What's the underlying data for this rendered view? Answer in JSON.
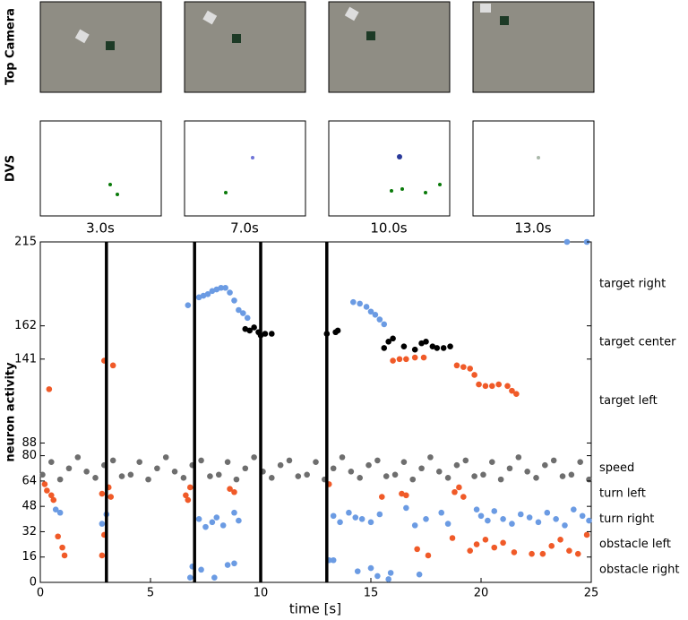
{
  "panels": {
    "row_labels": [
      "Top Camera",
      "DVS"
    ],
    "times": [
      "3.0s",
      "7.0s",
      "10.0s",
      "13.0s"
    ]
  },
  "chart_data": {
    "type": "scatter",
    "xlabel": "time [s]",
    "ylabel": "neuron activity",
    "xlim": [
      0,
      25
    ],
    "xticks": [
      0,
      5,
      10,
      15,
      20,
      25
    ],
    "ylim": [
      0,
      215
    ],
    "yticks": [
      0,
      16,
      32,
      48,
      64,
      80,
      88,
      141,
      162,
      215
    ],
    "markers": [
      3,
      7,
      10,
      13
    ],
    "regions": [
      {
        "label": "target right",
        "range": [
          162,
          215
        ]
      },
      {
        "label": "target center",
        "range": [
          141,
          162
        ]
      },
      {
        "label": "target left",
        "range": [
          88,
          141
        ]
      },
      {
        "label": "speed",
        "range": [
          64,
          80
        ]
      },
      {
        "label": "turn left",
        "range": [
          48,
          64
        ]
      },
      {
        "label": "turn right",
        "range": [
          32,
          48
        ]
      },
      {
        "label": "obstacle left",
        "range": [
          16,
          32
        ]
      },
      {
        "label": "obstacle right",
        "range": [
          0,
          16
        ]
      }
    ],
    "series": [
      {
        "color": "#6b9be3",
        "x": [
          6.7,
          7.2,
          7.4,
          7.6,
          7.8,
          8.0,
          8.2,
          8.4,
          8.6,
          8.8,
          9.0,
          9.2,
          9.4,
          14.2,
          14.5,
          14.8,
          15.0,
          15.2,
          15.4,
          15.6,
          23.9,
          24.8
        ],
        "y": [
          175,
          180,
          181,
          182,
          184,
          185,
          186,
          186,
          183,
          178,
          172,
          170,
          167,
          177,
          176,
          174,
          171,
          169,
          166,
          163,
          215,
          215
        ]
      },
      {
        "color": "#000000",
        "x": [
          9.3,
          9.5,
          9.7,
          9.9,
          10.0,
          10.2,
          10.5,
          13.0,
          13.4,
          13.5,
          15.6,
          15.8,
          16.0,
          16.5,
          17.0,
          17.3,
          17.5,
          17.8,
          18.0,
          18.3,
          18.6
        ],
        "y": [
          160,
          159,
          161,
          158,
          156,
          157,
          157,
          157,
          158,
          159,
          148,
          152,
          154,
          149,
          147,
          151,
          152,
          149,
          148,
          148,
          149
        ]
      },
      {
        "color": "#f05a28",
        "x": [
          0.4,
          2.9,
          3.3,
          16.0,
          16.3,
          16.6,
          17.0,
          17.4,
          18.9,
          19.2,
          19.5,
          19.7,
          19.9,
          20.2,
          20.5,
          20.8,
          21.2,
          21.4,
          21.6
        ],
        "y": [
          122,
          140,
          137,
          140,
          141,
          141,
          142,
          142,
          137,
          136,
          135,
          131,
          125,
          124,
          124,
          125,
          124,
          121,
          119
        ]
      },
      {
        "color": "#6e6e6e",
        "x": [
          0.1,
          0.5,
          0.9,
          1.3,
          1.7,
          2.1,
          2.5,
          2.9,
          3.3,
          3.7,
          4.1,
          4.5,
          4.9,
          5.3,
          5.7,
          6.1,
          6.5,
          6.9,
          7.3,
          7.7,
          8.1,
          8.5,
          8.9,
          9.3,
          9.7,
          10.1,
          10.5,
          10.9,
          11.3,
          11.7,
          12.1,
          12.5,
          12.9,
          13.3,
          13.7,
          14.1,
          14.5,
          14.9,
          15.3,
          15.7,
          16.1,
          16.5,
          16.9,
          17.3,
          17.7,
          18.1,
          18.5,
          18.9,
          19.3,
          19.7,
          20.1,
          20.5,
          20.9,
          21.3,
          21.7,
          22.1,
          22.5,
          22.9,
          23.3,
          23.7,
          24.1,
          24.5,
          24.9
        ],
        "y": [
          68,
          76,
          65,
          72,
          79,
          70,
          66,
          74,
          77,
          67,
          68,
          76,
          65,
          72,
          79,
          70,
          66,
          74,
          77,
          67,
          68,
          76,
          65,
          72,
          79,
          70,
          66,
          74,
          77,
          67,
          68,
          76,
          65,
          72,
          79,
          70,
          66,
          74,
          77,
          67,
          68,
          76,
          65,
          72,
          79,
          70,
          66,
          74,
          77,
          67,
          68,
          76,
          65,
          72,
          79,
          70,
          66,
          74,
          77,
          67,
          68,
          76,
          65
        ]
      },
      {
        "color": "#f05a28",
        "x": [
          0.2,
          0.3,
          0.5,
          0.6,
          2.8,
          3.1,
          3.2,
          6.6,
          6.7,
          6.8,
          8.6,
          8.8,
          13.1,
          15.5,
          16.4,
          16.6,
          18.8,
          19.0,
          19.2
        ],
        "y": [
          62,
          58,
          55,
          52,
          56,
          60,
          54,
          55,
          52,
          60,
          59,
          57,
          62,
          54,
          56,
          55,
          57,
          60,
          54
        ]
      },
      {
        "color": "#6b9be3",
        "x": [
          0.7,
          0.9,
          2.8,
          3.0,
          7.2,
          7.5,
          7.8,
          8.0,
          8.3,
          8.8,
          9.0,
          13.3,
          13.6,
          14.0,
          14.3,
          14.6,
          15.0,
          15.4,
          16.6,
          17.0,
          17.5,
          18.2,
          18.5,
          19.8,
          20.0,
          20.3,
          20.6,
          21.0,
          21.4,
          21.8,
          22.2,
          22.6,
          23.0,
          23.4,
          23.8,
          24.2,
          24.6,
          24.9
        ],
        "y": [
          46,
          44,
          37,
          43,
          40,
          35,
          38,
          41,
          36,
          44,
          39,
          42,
          38,
          44,
          41,
          40,
          38,
          43,
          47,
          36,
          40,
          44,
          37,
          46,
          42,
          39,
          45,
          40,
          37,
          43,
          41,
          38,
          44,
          40,
          36,
          46,
          42,
          39
        ]
      },
      {
        "color": "#f05a28",
        "x": [
          0.8,
          1.0,
          1.1,
          2.8,
          2.9,
          17.1,
          17.6,
          18.7,
          19.5,
          19.8,
          20.2,
          20.6,
          21.0,
          21.5,
          22.3,
          22.8,
          23.2,
          23.6,
          24.0,
          24.4,
          24.8
        ],
        "y": [
          29,
          22,
          17,
          17,
          30,
          21,
          17,
          28,
          20,
          24,
          27,
          22,
          25,
          19,
          18,
          18,
          23,
          27,
          20,
          18,
          30
        ]
      },
      {
        "color": "#6b9be3",
        "x": [
          6.8,
          6.9,
          7.3,
          7.9,
          8.5,
          8.8,
          13.1,
          13.3,
          14.4,
          15.0,
          15.3,
          15.8,
          15.9,
          17.2
        ],
        "y": [
          3,
          10,
          8,
          3,
          11,
          12,
          14,
          14,
          7,
          9,
          4,
          2,
          6,
          5
        ]
      }
    ]
  }
}
